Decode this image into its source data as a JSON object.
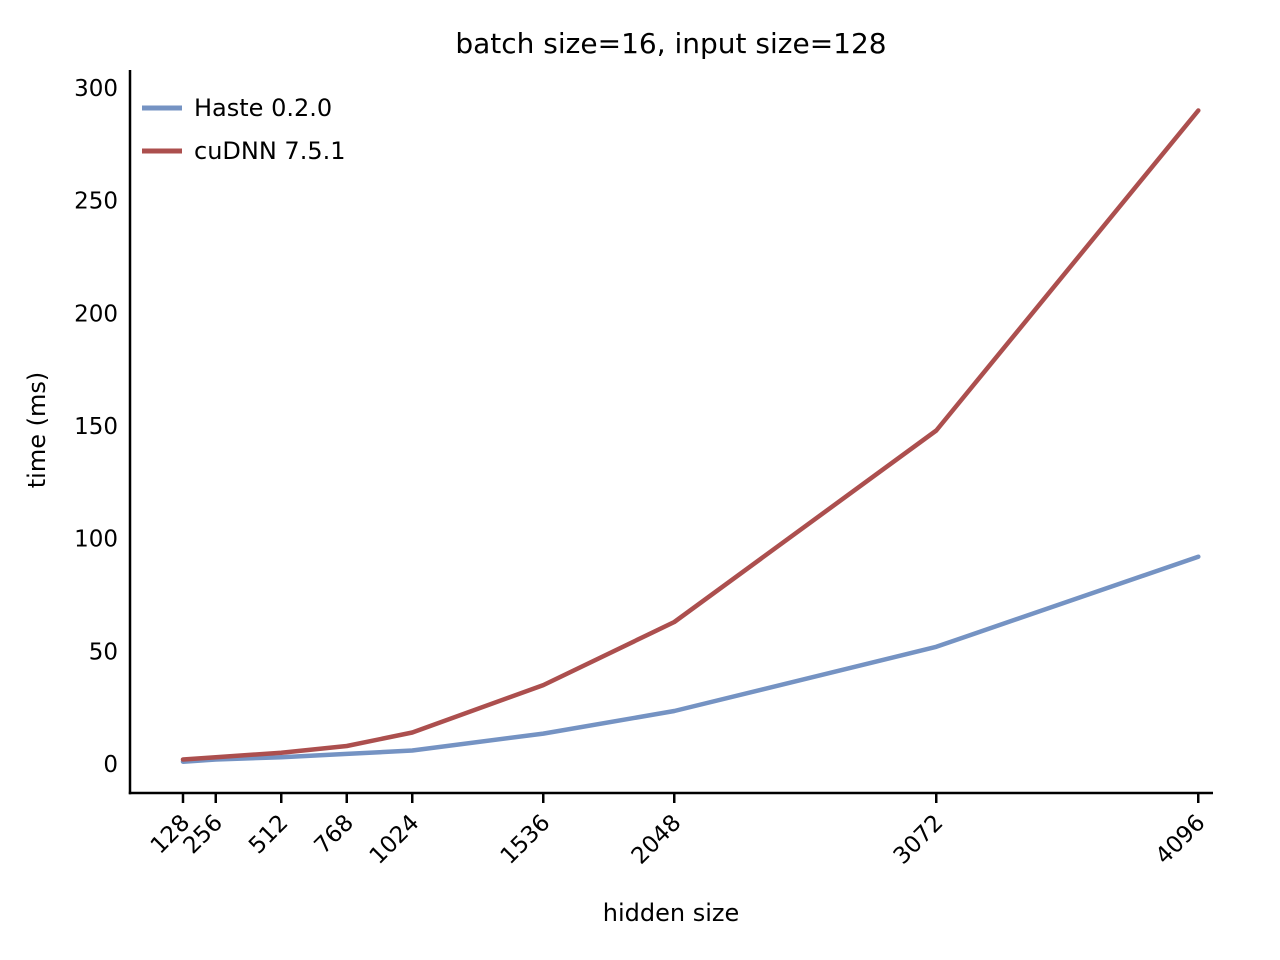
{
  "chart_data": {
    "type": "line",
    "title": "batch size=16, input size=128",
    "xlabel": "hidden size",
    "ylabel": "time (ms)",
    "x": [
      128,
      256,
      512,
      768,
      1024,
      1536,
      2048,
      3072,
      4096
    ],
    "xtick_labels": [
      "128",
      "256",
      "512",
      "768",
      "1024",
      "1536",
      "2048",
      "3072",
      "4096"
    ],
    "yticks": [
      0,
      50,
      100,
      150,
      200,
      250,
      300
    ],
    "ylim": [
      0,
      300
    ],
    "xlim": [
      128,
      4096
    ],
    "grid": false,
    "legend_position": "upper-left",
    "axis_color": "#000000",
    "series": [
      {
        "name": "Haste 0.2.0",
        "color": "#7593C3",
        "values": [
          1.0,
          2.0,
          3.0,
          4.5,
          6.0,
          13.5,
          23.5,
          52,
          92
        ]
      },
      {
        "name": "cuDNN 7.5.1",
        "color": "#AC4F4E",
        "values": [
          2.0,
          3.0,
          5.0,
          8.0,
          14.0,
          35,
          63,
          148,
          290
        ]
      }
    ]
  }
}
